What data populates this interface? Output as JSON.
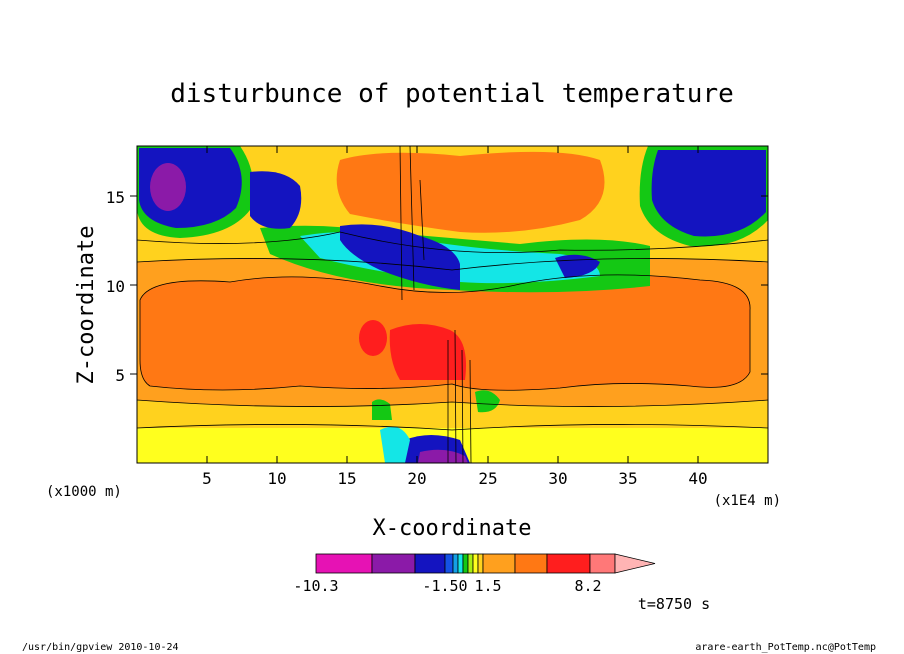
{
  "chart_data": {
    "type": "heatmap",
    "title": "disturbunce of potential temperature",
    "xlabel": "X-coordinate",
    "ylabel": "Z-coordinate",
    "x_unit_left": "(x1000 m)",
    "x_unit_right": "(x1E4 m)",
    "xlim": [
      0,
      45
    ],
    "ylim": [
      0,
      17.8
    ],
    "x_ticks": [
      5,
      10,
      15,
      20,
      25,
      30,
      35,
      40
    ],
    "x_tick_labels": [
      "5",
      "10",
      "15",
      "20",
      "25",
      "30",
      "35",
      "40"
    ],
    "y_ticks": [
      5,
      10,
      15
    ],
    "y_tick_labels": [
      "5",
      "10",
      "15"
    ],
    "colorbar": {
      "min_label": "-10.3",
      "mid_left_label": "-1.50",
      "mid_right_label": "1.5",
      "max_label": "8.2",
      "colors": [
        "#e612b4",
        "#8b1aa8",
        "#1414c0",
        "#1452e6",
        "#14a0e6",
        "#14e6e6",
        "#14c814",
        "#aaee14",
        "#ffff1e",
        "#ffd21e",
        "#ffa01e",
        "#ff7814",
        "#ff1e1e",
        "#ff7878",
        "#ffb4b4"
      ]
    },
    "time_label": "t=8750 s"
  },
  "footer": {
    "left": "/usr/bin/gpview  2010-10-24",
    "right": "arare-earth_PotTemp.nc@PotTemp"
  }
}
